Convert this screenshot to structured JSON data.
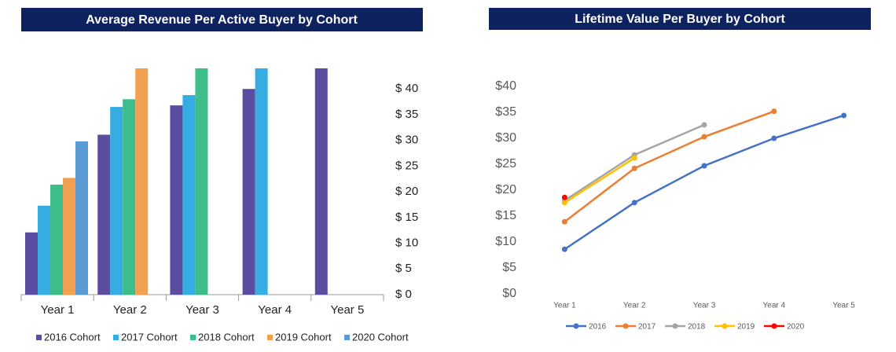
{
  "chart_data": [
    {
      "type": "bar",
      "title": "Average Revenue Per Active Buyer by Cohort",
      "categories": [
        "Year 1",
        "Year 2",
        "Year 3",
        "Year 4",
        "Year 5"
      ],
      "series": [
        {
          "name": "2016 Cohort",
          "color": "#5b4ea0",
          "values": [
            12.1,
            31.1,
            36.8,
            40,
            44
          ]
        },
        {
          "name": "2017 Cohort",
          "color": "#35ade2",
          "values": [
            17.3,
            36.5,
            38.8,
            44,
            null
          ]
        },
        {
          "name": "2018 Cohort",
          "color": "#3dbd8a",
          "values": [
            21.4,
            38,
            44,
            null,
            null
          ]
        },
        {
          "name": "2019 Cohort",
          "color": "#f0a050",
          "values": [
            22.7,
            44,
            null,
            null,
            null
          ]
        },
        {
          "name": "2020 Cohort",
          "color": "#5b9bd5",
          "values": [
            29.8,
            null,
            null,
            null,
            null
          ]
        }
      ],
      "ylim": [
        0,
        44
      ],
      "yticks": [
        {
          "value": 0,
          "label": "$ 0"
        },
        {
          "value": 5,
          "label": "$ 5"
        },
        {
          "value": 10,
          "label": "$ 10"
        },
        {
          "value": 15,
          "label": "$ 15"
        },
        {
          "value": 20,
          "label": "$ 20"
        },
        {
          "value": 25,
          "label": "$ 25"
        },
        {
          "value": 30,
          "label": "$ 30"
        },
        {
          "value": 35,
          "label": "$ 35"
        },
        {
          "value": 40,
          "label": "$ 40"
        }
      ],
      "legend": "bottom"
    },
    {
      "type": "line",
      "title": "Lifetime Value Per Buyer by Cohort",
      "categories": [
        "Year 1",
        "Year 2",
        "Year 3",
        "Year 4",
        "Year 5"
      ],
      "series": [
        {
          "name": "2016",
          "color": "#4472c4",
          "values": [
            8.6,
            17.6,
            24.7,
            30,
            34.4
          ]
        },
        {
          "name": "2017",
          "color": "#ed7d31",
          "values": [
            13.9,
            24.2,
            30.3,
            35.2,
            null
          ]
        },
        {
          "name": "2018",
          "color": "#a5a5a5",
          "values": [
            18,
            26.8,
            32.6,
            null,
            null
          ]
        },
        {
          "name": "2019",
          "color": "#ffc000",
          "values": [
            17.6,
            26.2,
            null,
            null,
            null
          ]
        },
        {
          "name": "2020",
          "color": "#ff0000",
          "values": [
            18.6,
            null,
            null,
            null,
            null
          ]
        }
      ],
      "ylim": [
        0,
        40
      ],
      "yticks": [
        {
          "value": 0,
          "label": "$0"
        },
        {
          "value": 5,
          "label": "$5"
        },
        {
          "value": 10,
          "label": "$10"
        },
        {
          "value": 15,
          "label": "$15"
        },
        {
          "value": 20,
          "label": "$20"
        },
        {
          "value": 25,
          "label": "$25"
        },
        {
          "value": 30,
          "label": "$30"
        },
        {
          "value": 35,
          "label": "$35"
        },
        {
          "value": 40,
          "label": "$40"
        }
      ],
      "legend": "bottom"
    }
  ]
}
